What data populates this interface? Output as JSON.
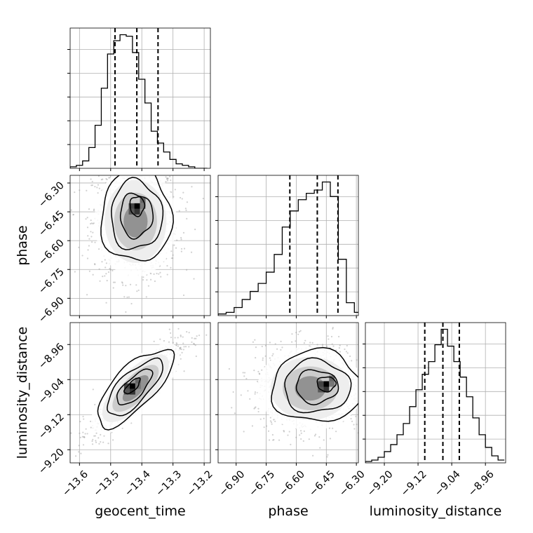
{
  "chart_data": {
    "type": "corner",
    "parameters": [
      "geocent_time",
      "phase",
      "luminosity_distance"
    ],
    "grid": true,
    "diagonal": [
      {
        "name": "geocent_time",
        "type": "histogram",
        "xlim": [
          -13.63,
          -13.18
        ],
        "ticks": [
          -13.6,
          -13.5,
          -13.4,
          -13.3,
          -13.2
        ],
        "tick_labels": [
          "−13.6",
          "−13.5",
          "−13.4",
          "−13.3",
          "−13.2"
        ],
        "bin_edges": [
          -13.63,
          -13.61,
          -13.59,
          -13.57,
          -13.55,
          -13.53,
          -13.51,
          -13.49,
          -13.47,
          -13.45,
          -13.43,
          -13.41,
          -13.39,
          -13.37,
          -13.35,
          -13.33,
          -13.31,
          -13.29,
          -13.27,
          -13.25,
          -13.23,
          -13.21,
          -13.19
        ],
        "counts": [
          1,
          2,
          5,
          14,
          29,
          54,
          77,
          86,
          90,
          89,
          78,
          60,
          44,
          25,
          17,
          11,
          6,
          3,
          2,
          1,
          0,
          0
        ],
        "quantiles": [
          -13.486,
          -13.416,
          -13.348
        ]
      },
      {
        "name": "phase",
        "type": "histogram",
        "xlim": [
          -6.99,
          -6.29
        ],
        "ticks": [
          -6.9,
          -6.75,
          -6.6,
          -6.45,
          -6.3
        ],
        "tick_labels": [
          "−6.90",
          "−6.75",
          "−6.60",
          "−6.45",
          "−6.30"
        ],
        "bin_edges": [
          -6.99,
          -6.95,
          -6.91,
          -6.87,
          -6.83,
          -6.79,
          -6.75,
          -6.71,
          -6.67,
          -6.63,
          -6.59,
          -6.55,
          -6.51,
          -6.47,
          -6.43,
          -6.39,
          -6.35,
          -6.31,
          -6.27
        ],
        "counts": [
          1,
          2,
          5,
          10,
          15,
          20,
          27,
          38,
          55,
          65,
          72,
          76,
          78,
          83,
          74,
          35,
          8,
          2
        ],
        "quantiles": [
          -6.632,
          -6.495,
          -6.392
        ]
      },
      {
        "name": "luminosity_distance",
        "type": "histogram",
        "xlim": [
          -9.245,
          -8.912
        ],
        "ticks": [
          -9.2,
          -9.12,
          -9.04,
          -8.96
        ],
        "tick_labels": [
          "−9.20",
          "−9.12",
          "−9.04",
          "−8.96"
        ],
        "bin_edges": [
          -9.245,
          -9.23,
          -9.215,
          -9.2,
          -9.185,
          -9.17,
          -9.155,
          -9.14,
          -9.125,
          -9.11,
          -9.095,
          -9.08,
          -9.065,
          -9.05,
          -9.035,
          -9.02,
          -9.005,
          -8.99,
          -8.975,
          -8.96,
          -8.945,
          -8.93,
          -8.915
        ],
        "counts": [
          1,
          2,
          4,
          8,
          13,
          20,
          28,
          40,
          52,
          63,
          72,
          84,
          95,
          83,
          72,
          61,
          47,
          32,
          20,
          11,
          5,
          2
        ],
        "quantiles": [
          -9.104,
          -9.061,
          -9.022
        ]
      }
    ],
    "off_diagonal": [
      {
        "x": "geocent_time",
        "y": "phase",
        "type": "2d-histogram-contours",
        "ylim": [
          -6.99,
          -6.26
        ],
        "yticks": [
          -6.9,
          -6.75,
          -6.6,
          -6.45,
          -6.3
        ],
        "ytick_labels": [
          "−6.90",
          "−6.75",
          "−6.60",
          "−6.45",
          "−6.30"
        ],
        "peak": {
          "x": -13.415,
          "y": -6.42
        },
        "center": {
          "x": -13.42,
          "y": -6.5
        },
        "spread": {
          "x": 0.055,
          "y": 0.12
        },
        "correlation": 0.0
      },
      {
        "x": "geocent_time",
        "y": "luminosity_distance",
        "type": "2d-histogram-contours",
        "ylim": [
          -9.23,
          -8.91
        ],
        "yticks": [
          -9.2,
          -9.12,
          -9.04,
          -8.96
        ],
        "ytick_labels": [
          "−9.20",
          "−9.12",
          "−9.04",
          "−8.96"
        ],
        "peak": {
          "x": -13.43,
          "y": -9.055
        },
        "center": {
          "x": -13.42,
          "y": -9.06
        },
        "spread": {
          "x": 0.055,
          "y": 0.04
        },
        "correlation": 0.88
      },
      {
        "x": "phase",
        "y": "luminosity_distance",
        "type": "2d-histogram-contours",
        "peak": {
          "x": -6.45,
          "y": -9.05
        },
        "center": {
          "x": -6.53,
          "y": -9.06
        },
        "spread": {
          "x": 0.11,
          "y": 0.04
        },
        "correlation": 0.0
      }
    ],
    "x_axis_titles": [
      "geocent_time",
      "phase",
      "luminosity_distance"
    ],
    "y_axis_titles": [
      "phase",
      "luminosity_distance"
    ]
  }
}
